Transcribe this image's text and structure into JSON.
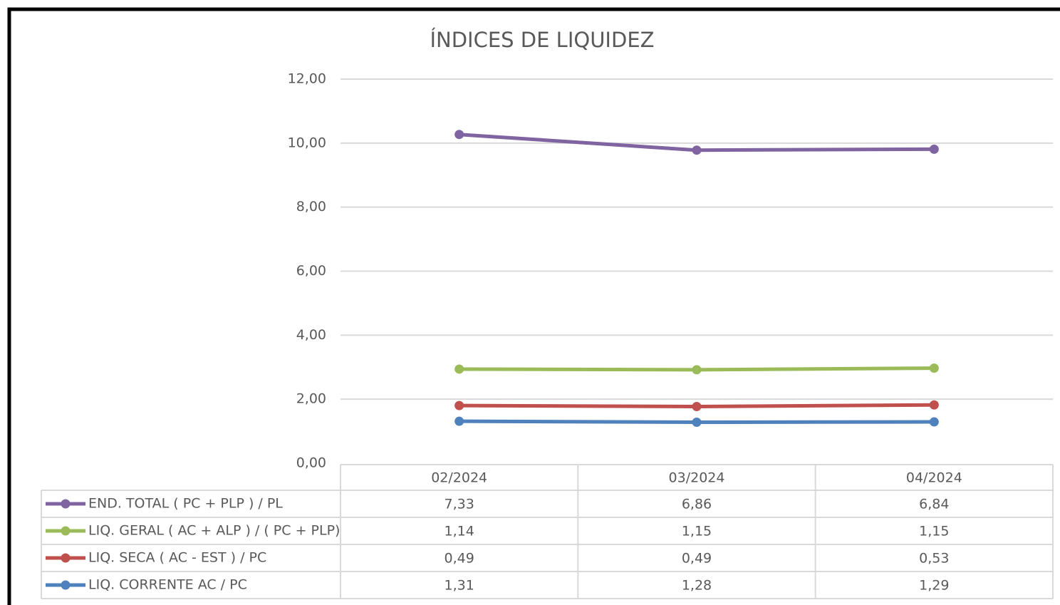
{
  "chart_data": {
    "type": "stacked-line",
    "title": "ÍNDICES DE LIQUIDEZ",
    "categories": [
      "02/2024",
      "03/2024",
      "04/2024"
    ],
    "series": [
      {
        "name": "END. TOTAL ( PC + PLP )  / PL",
        "color": "#8064a2",
        "values": [
          7.33,
          6.86,
          6.84
        ],
        "value_labels": [
          "7,33",
          "6,86",
          "6,84"
        ]
      },
      {
        "name": "LIQ. GERAL ( AC + ALP ) / ( PC + PLP)",
        "color": "#9bbb59",
        "values": [
          1.14,
          1.15,
          1.15
        ],
        "value_labels": [
          "1,14",
          "1,15",
          "1,15"
        ]
      },
      {
        "name": "LIQ. SECA ( AC - EST )  / PC",
        "color": "#c0504d",
        "values": [
          0.49,
          0.49,
          0.53
        ],
        "value_labels": [
          "0,49",
          "0,49",
          "0,53"
        ]
      },
      {
        "name": "LIQ. CORRENTE  AC / PC",
        "color": "#4f81bd",
        "values": [
          1.31,
          1.28,
          1.29
        ],
        "value_labels": [
          "1,31",
          "1,28",
          "1,29"
        ]
      }
    ],
    "ylim": [
      0,
      12
    ],
    "yticks": [
      {
        "value": 0,
        "label": "0,00"
      },
      {
        "value": 2,
        "label": "2,00"
      },
      {
        "value": 4,
        "label": "4,00"
      },
      {
        "value": 6,
        "label": "6,00"
      },
      {
        "value": 8,
        "label": "8,00"
      },
      {
        "value": 10,
        "label": "10,00"
      },
      {
        "value": 12,
        "label": "12,00"
      }
    ],
    "grid": true,
    "data_table": true
  }
}
